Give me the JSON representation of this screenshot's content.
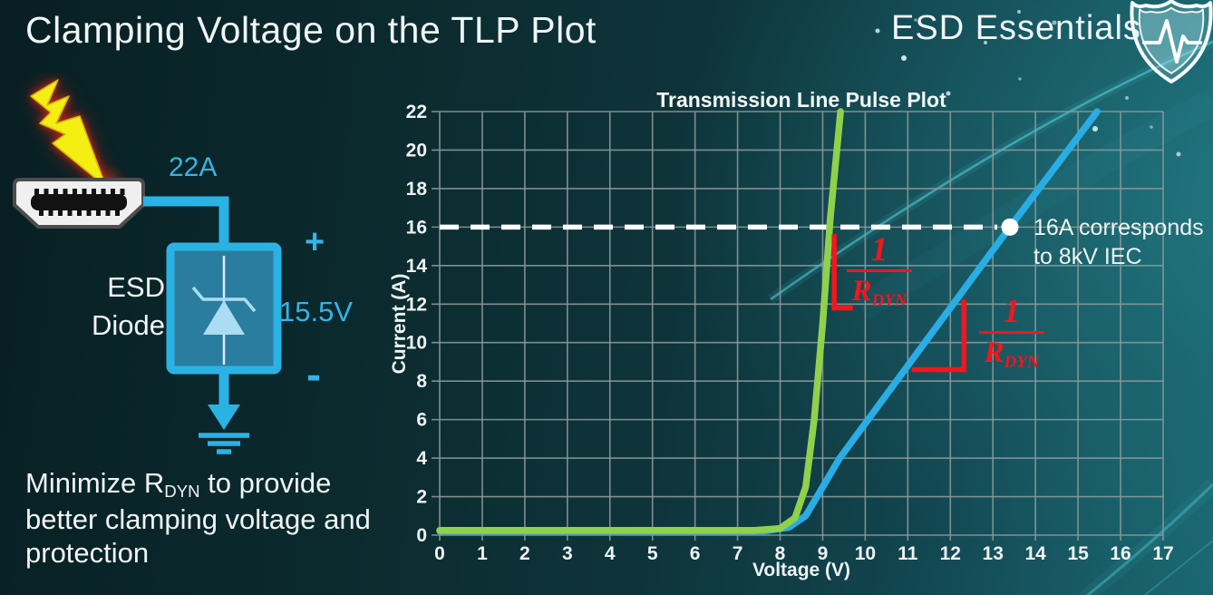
{
  "slide": {
    "title": "Clamping Voltage on the TLP Plot"
  },
  "brand": {
    "name": "ESD Essentials",
    "logo": "shield-pulse-icon"
  },
  "diagram": {
    "surge_current": "22A",
    "clamp_voltage": "15.5V",
    "polarity_plus": "+",
    "polarity_minus": "-",
    "device_line1": "ESD",
    "device_line2": "Diode"
  },
  "caption": {
    "lead": "Minimize R",
    "sub": "DYN",
    "rest": " to provide better clamping voltage and protection"
  },
  "colors": {
    "accent_cyan": "#2fb3e3",
    "curve_green": "#8fd14b",
    "curve_blue": "#29ade4",
    "annotation_red": "#f5151c",
    "grid": "#8a999b",
    "background_teal": "#0c2a2e"
  },
  "chart_data": {
    "type": "line",
    "title": "Transmission Line Pulse Plot",
    "xlabel": "Voltage (V)",
    "ylabel": "Current (A)",
    "xlim": [
      0,
      17
    ],
    "ylim": [
      0,
      22
    ],
    "x_ticks": [
      0,
      1,
      2,
      3,
      4,
      5,
      6,
      7,
      8,
      9,
      10,
      11,
      12,
      13,
      14,
      15,
      16,
      17
    ],
    "y_ticks": [
      0,
      2,
      4,
      6,
      8,
      10,
      12,
      14,
      16,
      18,
      20,
      22
    ],
    "grid": "on",
    "legend": "none",
    "series": [
      {
        "name": "green-curve-low-rdyn",
        "color": "#8fd14b",
        "points": [
          [
            0,
            0.25
          ],
          [
            7.4,
            0.25
          ],
          [
            8.0,
            0.35
          ],
          [
            8.35,
            0.9
          ],
          [
            8.6,
            2.5
          ],
          [
            8.8,
            6.0
          ],
          [
            9.0,
            11.0
          ],
          [
            9.18,
            16.5
          ],
          [
            9.42,
            22
          ]
        ]
      },
      {
        "name": "blue-curve-high-rdyn",
        "color": "#29ade4",
        "points": [
          [
            0,
            0.2
          ],
          [
            7.6,
            0.2
          ],
          [
            8.2,
            0.4
          ],
          [
            8.6,
            1.0
          ],
          [
            9.0,
            2.5
          ],
          [
            9.4,
            4.0
          ],
          [
            13.4,
            16
          ],
          [
            15.45,
            22
          ]
        ]
      }
    ],
    "threshold_line": {
      "y": 16,
      "style": "dashed-white"
    },
    "marker": {
      "x": 13.4,
      "y": 16,
      "label_line1": "16A corresponds",
      "label_line2": "to 8kV IEC"
    },
    "slope_annotations": [
      {
        "curve": "green",
        "numerator": "1",
        "denominator": "R",
        "denominator_sub": "DYN",
        "bracket": {
          "x": 9.27,
          "y_top": 15.5,
          "y_bottom": 11.8,
          "foot_to_x": 9.65
        }
      },
      {
        "curve": "blue",
        "numerator": "1",
        "denominator": "R",
        "denominator_sub": "DYN",
        "bracket": {
          "x": 12.32,
          "y_top": 12.1,
          "y_bottom": 8.6,
          "foot_to_x": 11.15
        }
      }
    ]
  }
}
